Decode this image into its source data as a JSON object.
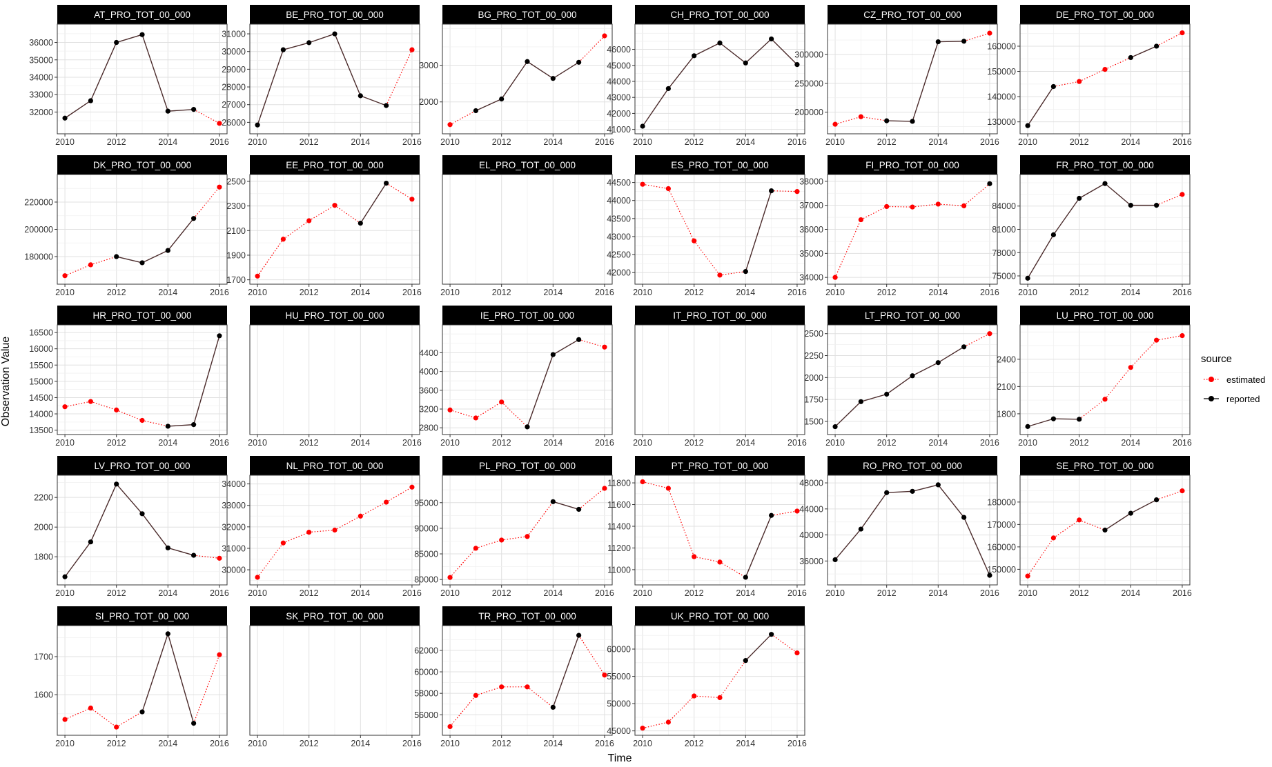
{
  "figure": {
    "xlabel": "Time",
    "ylabel": "Observation Value",
    "legend": {
      "title": "source",
      "placement": "right",
      "items": [
        {
          "label": "estimated",
          "color": "#ff0000",
          "line": "dotted"
        },
        {
          "label": "reported",
          "color": "#000000",
          "line": "solid"
        }
      ]
    },
    "colors": {
      "estimated": "#ff0000",
      "reported": "#000000",
      "connector": "#4a2a2a",
      "strip": "#000000",
      "grid": "#e6e6e6",
      "border": "#333333"
    }
  },
  "chart_data": {
    "type": "line",
    "layout": "facet-grid 6 columns x 5 rows",
    "x": [
      2010,
      2011,
      2012,
      2013,
      2014,
      2015,
      2016
    ],
    "xticks": [
      2010,
      2012,
      2014,
      2016
    ],
    "xlabel": "Time",
    "ylabel": "Observation Value",
    "legend_title": "source",
    "series_names": [
      "estimated",
      "reported"
    ],
    "grid": true,
    "facets": [
      {
        "name": "AT_PRO_TOT_00_000",
        "ylim": [
          31000,
          36800
        ],
        "yticks": [
          32000,
          33000,
          34000,
          35000,
          36000
        ],
        "values": [
          31650,
          32650,
          36000,
          36450,
          32050,
          32150,
          31350
        ],
        "source": [
          "reported",
          "reported",
          "reported",
          "reported",
          "reported",
          "reported",
          "estimated"
        ]
      },
      {
        "name": "BE_PRO_TOT_00_000",
        "ylim": [
          25600,
          31300
        ],
        "yticks": [
          26000,
          27000,
          28000,
          29000,
          30000,
          31000
        ],
        "values": [
          25850,
          30100,
          30500,
          31000,
          27500,
          26950,
          30100
        ],
        "source": [
          "reported",
          "reported",
          "reported",
          "reported",
          "reported",
          "reported",
          "estimated"
        ]
      },
      {
        "name": "BG_PRO_TOT_00_000",
        "ylim": [
          1250,
          4000
        ],
        "yticks": [
          2000,
          3000
        ],
        "values": [
          1380,
          1760,
          2080,
          3100,
          2640,
          3080,
          3800
        ],
        "source": [
          "estimated",
          "reported",
          "reported",
          "reported",
          "reported",
          "reported",
          "estimated"
        ]
      },
      {
        "name": "CH_PRO_TOT_00_000",
        "ylim": [
          41000,
          47300
        ],
        "yticks": [
          41000,
          42000,
          43000,
          44000,
          45000,
          46000
        ],
        "values": [
          41200,
          43550,
          45600,
          46400,
          45150,
          46650,
          45050
        ],
        "source": [
          "reported",
          "reported",
          "reported",
          "reported",
          "reported",
          "reported",
          "reported"
        ]
      },
      {
        "name": "CZ_PRO_TOT_00_000",
        "ylim": [
          170000,
          345000
        ],
        "yticks": [
          200000,
          250000,
          300000
        ],
        "values": [
          179000,
          192000,
          185000,
          184000,
          322000,
          323000,
          337000
        ],
        "source": [
          "estimated",
          "estimated",
          "reported",
          "reported",
          "reported",
          "reported",
          "estimated"
        ]
      },
      {
        "name": "DE_PRO_TOT_00_000",
        "ylim": [
          127000,
          167000
        ],
        "yticks": [
          130000,
          140000,
          150000,
          160000
        ],
        "values": [
          128500,
          144000,
          146000,
          150800,
          155500,
          160000,
          165300
        ],
        "source": [
          "reported",
          "reported",
          "estimated",
          "estimated",
          "reported",
          "reported",
          "estimated"
        ]
      },
      {
        "name": "DK_PRO_TOT_00_000",
        "ylim": [
          163000,
          237000
        ],
        "yticks": [
          180000,
          200000,
          220000
        ],
        "values": [
          166000,
          174000,
          180000,
          175500,
          184500,
          208000,
          231000
        ],
        "source": [
          "estimated",
          "estimated",
          "reported",
          "reported",
          "reported",
          "reported",
          "estimated"
        ]
      },
      {
        "name": "EE_PRO_TOT_00_000",
        "ylim": [
          1700,
          2520
        ],
        "yticks": [
          1700,
          1900,
          2100,
          2300,
          2500
        ],
        "values": [
          1730,
          2030,
          2180,
          2305,
          2160,
          2485,
          2355
        ],
        "source": [
          "estimated",
          "estimated",
          "estimated",
          "estimated",
          "reported",
          "reported",
          "estimated"
        ]
      },
      {
        "name": "EL_PRO_TOT_00_000",
        "ylim": [
          0,
          1
        ],
        "yticks": [],
        "values": [],
        "source": []
      },
      {
        "name": "ES_PRO_TOT_00_000",
        "ylim": [
          41800,
          44600
        ],
        "yticks": [
          42000,
          42500,
          43000,
          43500,
          44000,
          44500
        ],
        "values": [
          44450,
          44330,
          42880,
          41930,
          42030,
          44270,
          44250
        ],
        "source": [
          "estimated",
          "estimated",
          "estimated",
          "estimated",
          "reported",
          "reported",
          "estimated"
        ]
      },
      {
        "name": "FI_PRO_TOT_00_000",
        "ylim": [
          33900,
          38100
        ],
        "yticks": [
          34000,
          35000,
          36000,
          37000,
          38000
        ],
        "values": [
          34000,
          36400,
          36950,
          36930,
          37050,
          36980,
          37900
        ],
        "source": [
          "estimated",
          "estimated",
          "estimated",
          "estimated",
          "estimated",
          "estimated",
          "reported"
        ]
      },
      {
        "name": "FR_PRO_TOT_00_000",
        "ylim": [
          74500,
          87500
        ],
        "yticks": [
          75000,
          78000,
          81000,
          84000
        ],
        "values": [
          74700,
          80300,
          85000,
          86900,
          84100,
          84100,
          85500
        ],
        "source": [
          "reported",
          "reported",
          "reported",
          "reported",
          "reported",
          "reported",
          "estimated"
        ]
      },
      {
        "name": "HR_PRO_TOT_00_000",
        "ylim": [
          13500,
          16600
        ],
        "yticks": [
          13500,
          14000,
          14500,
          15000,
          15500,
          16000,
          16500
        ],
        "values": [
          14220,
          14380,
          14120,
          13800,
          13620,
          13670,
          16400
        ],
        "source": [
          "estimated",
          "estimated",
          "estimated",
          "estimated",
          "reported",
          "reported",
          "reported"
        ]
      },
      {
        "name": "HU_PRO_TOT_00_000",
        "ylim": [
          0,
          1
        ],
        "yticks": [],
        "values": [],
        "source": []
      },
      {
        "name": "IE_PRO_TOT_00_000",
        "ylim": [
          2750,
          4900
        ],
        "yticks": [
          2800,
          3200,
          3600,
          4000,
          4400
        ],
        "values": [
          3180,
          3010,
          3350,
          2820,
          4360,
          4680,
          4520
        ],
        "source": [
          "estimated",
          "estimated",
          "estimated",
          "reported",
          "reported",
          "reported",
          "estimated"
        ]
      },
      {
        "name": "IT_PRO_TOT_00_000",
        "ylim": [
          0,
          1
        ],
        "yticks": [],
        "values": [],
        "source": []
      },
      {
        "name": "LT_PRO_TOT_00_000",
        "ylim": [
          1400,
          2550
        ],
        "yticks": [
          1500,
          1750,
          2000,
          2250,
          2500
        ],
        "values": [
          1440,
          1725,
          1810,
          2020,
          2170,
          2350,
          2500
        ],
        "source": [
          "reported",
          "reported",
          "reported",
          "reported",
          "reported",
          "reported",
          "estimated"
        ]
      },
      {
        "name": "LU_PRO_TOT_00_000",
        "ylim": [
          1620,
          2730
        ],
        "yticks": [
          1800,
          2100,
          2400
        ],
        "values": [
          1660,
          1745,
          1740,
          1960,
          2310,
          2610,
          2660
        ],
        "source": [
          "reported",
          "reported",
          "reported",
          "estimated",
          "estimated",
          "estimated",
          "estimated"
        ]
      },
      {
        "name": "LV_PRO_TOT_00_000",
        "ylim": [
          1640,
          2320
        ],
        "yticks": [
          1800,
          2000,
          2200
        ],
        "values": [
          1665,
          1900,
          2290,
          2090,
          1860,
          1810,
          1790
        ],
        "source": [
          "reported",
          "reported",
          "reported",
          "reported",
          "reported",
          "reported",
          "estimated"
        ]
      },
      {
        "name": "NL_PRO_TOT_00_000",
        "ylim": [
          29500,
          34200
        ],
        "yticks": [
          30000,
          31000,
          32000,
          33000,
          34000
        ],
        "values": [
          29650,
          31250,
          31750,
          31850,
          32500,
          33150,
          33850
        ],
        "source": [
          "estimated",
          "estimated",
          "estimated",
          "estimated",
          "estimated",
          "estimated",
          "estimated"
        ]
      },
      {
        "name": "PL_PRO_TOT_00_000",
        "ylim": [
          79800,
          99500
        ],
        "yticks": [
          80000,
          85000,
          90000,
          95000
        ],
        "values": [
          80400,
          86100,
          87700,
          88400,
          95200,
          93700,
          97800
        ],
        "source": [
          "estimated",
          "estimated",
          "estimated",
          "estimated",
          "reported",
          "reported",
          "estimated"
        ]
      },
      {
        "name": "PT_PRO_TOT_00_000",
        "ylim": [
          10900,
          11830
        ],
        "yticks": [
          11000,
          11200,
          11400,
          11600,
          11800
        ],
        "values": [
          11810,
          11750,
          11120,
          11070,
          10930,
          11500,
          11540
        ],
        "source": [
          "estimated",
          "estimated",
          "estimated",
          "estimated",
          "reported",
          "reported",
          "estimated"
        ]
      },
      {
        "name": "RO_PRO_TOT_00_000",
        "ylim": [
          33000,
          48500
        ],
        "yticks": [
          36000,
          40000,
          44000,
          48000
        ],
        "values": [
          36200,
          40900,
          46500,
          46700,
          47700,
          42700,
          33800
        ],
        "source": [
          "reported",
          "reported",
          "reported",
          "reported",
          "reported",
          "reported",
          "reported"
        ]
      },
      {
        "name": "SE_PRO_TOT_00_000",
        "ylim": [
          145000,
          190000
        ],
        "yticks": [
          150000,
          160000,
          170000,
          180000
        ],
        "values": [
          147000,
          164000,
          172000,
          167500,
          175000,
          181000,
          185000
        ],
        "source": [
          "estimated",
          "estimated",
          "estimated",
          "reported",
          "reported",
          "reported",
          "estimated"
        ]
      },
      {
        "name": "SI_PRO_TOT_00_000",
        "ylim": [
          1505,
          1770
        ],
        "yticks": [
          1600,
          1700
        ],
        "values": [
          1535,
          1565,
          1515,
          1555,
          1760,
          1525,
          1705
        ],
        "source": [
          "estimated",
          "estimated",
          "estimated",
          "reported",
          "reported",
          "reported",
          "estimated"
        ]
      },
      {
        "name": "SK_PRO_TOT_00_000",
        "ylim": [
          0,
          1
        ],
        "yticks": [],
        "values": [],
        "source": []
      },
      {
        "name": "TR_PRO_TOT_00_000",
        "ylim": [
          54500,
          63900
        ],
        "yticks": [
          56000,
          58000,
          60000,
          62000
        ],
        "values": [
          54900,
          57800,
          58600,
          58600,
          56700,
          63400,
          59700
        ],
        "source": [
          "estimated",
          "estimated",
          "estimated",
          "estimated",
          "reported",
          "reported",
          "estimated"
        ]
      },
      {
        "name": "UK_PRO_TOT_00_000",
        "ylim": [
          45000,
          63500
        ],
        "yticks": [
          45000,
          50000,
          55000,
          60000
        ],
        "values": [
          45500,
          46600,
          51400,
          51100,
          57900,
          62700,
          59300
        ],
        "source": [
          "estimated",
          "estimated",
          "estimated",
          "estimated",
          "reported",
          "reported",
          "estimated"
        ]
      }
    ]
  }
}
